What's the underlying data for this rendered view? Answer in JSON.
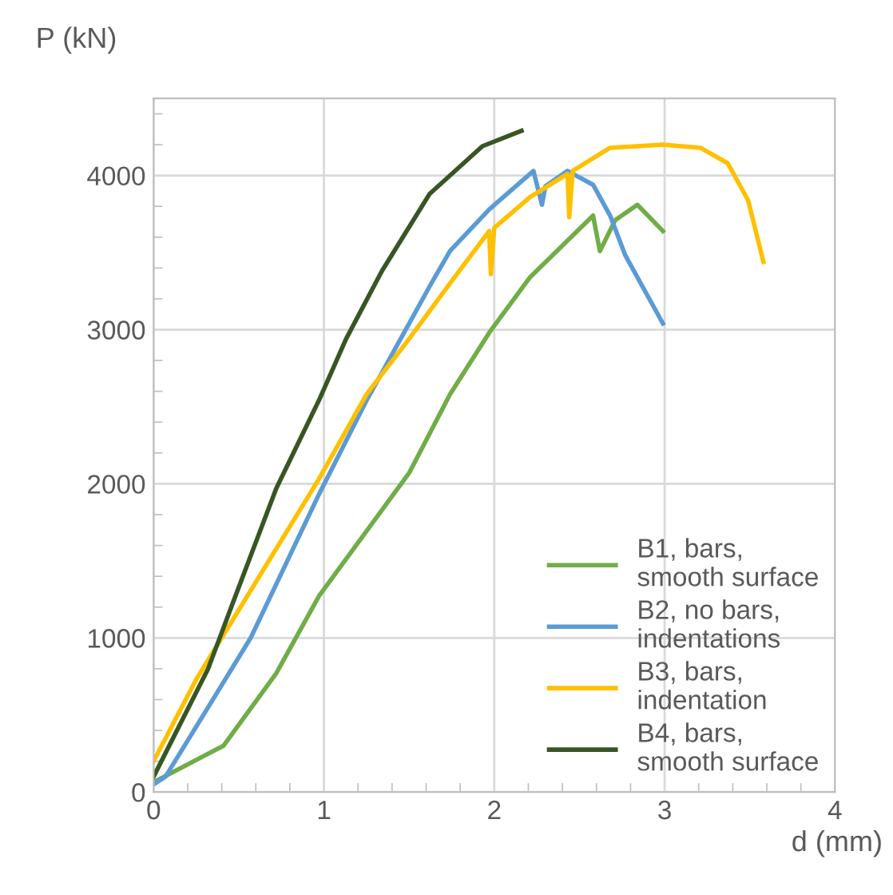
{
  "chart_data": {
    "type": "line",
    "ylabel": "P (kN)",
    "xlabel": "d (mm)",
    "xlim": [
      0,
      4
    ],
    "xticks": [
      0,
      1,
      2,
      3,
      4
    ],
    "ylim": [
      0,
      4500
    ],
    "yticks": [
      0,
      1000,
      2000,
      3000,
      4000
    ],
    "grid": true,
    "legend": "bottom right",
    "marker": "none",
    "line_style": "solid",
    "series": [
      {
        "name": "B1, bars,\nsmooth surface",
        "color": "#70ad47",
        "x": [
          0.01,
          0.41,
          0.72,
          0.97,
          1.5,
          1.74,
          1.97,
          2.21,
          2.58,
          2.62,
          2.71,
          2.84,
          2.99
        ],
        "values": [
          70,
          300,
          770,
          1270,
          2070,
          2580,
          2980,
          3340,
          3740,
          3510,
          3710,
          3810,
          3640
        ]
      },
      {
        "name": "B2, no bars,\nindentations",
        "color": "#5b9bd5",
        "x": [
          0.0,
          0.07,
          0.57,
          0.97,
          1.25,
          1.62,
          1.74,
          1.97,
          2.23,
          2.28,
          2.3,
          2.43,
          2.58,
          2.68,
          2.77,
          2.99
        ],
        "values": [
          50,
          100,
          1000,
          1930,
          2540,
          3280,
          3510,
          3780,
          4030,
          3810,
          3930,
          4030,
          3940,
          3740,
          3480,
          3040
        ]
      },
      {
        "name": "B3, bars,\nindentation",
        "color": "#ffc000",
        "x": [
          0.0,
          0.25,
          0.97,
          1.25,
          1.5,
          1.74,
          1.97,
          1.98,
          2.0,
          2.21,
          2.43,
          2.44,
          2.46,
          2.68,
          2.99,
          3.21,
          3.37,
          3.49,
          3.58
        ],
        "values": [
          200,
          730,
          2030,
          2580,
          2940,
          3300,
          3640,
          3360,
          3660,
          3860,
          4010,
          3730,
          4030,
          4180,
          4200,
          4180,
          4080,
          3840,
          3440
        ]
      },
      {
        "name": "B4, bars,\nsmooth surface",
        "color": "#375623",
        "x": [
          0.0,
          0.32,
          0.49,
          0.72,
          0.97,
          1.13,
          1.34,
          1.62,
          1.93,
          2.16
        ],
        "values": [
          100,
          800,
          1300,
          1970,
          2540,
          2940,
          3380,
          3880,
          4190,
          4290
        ]
      }
    ]
  }
}
